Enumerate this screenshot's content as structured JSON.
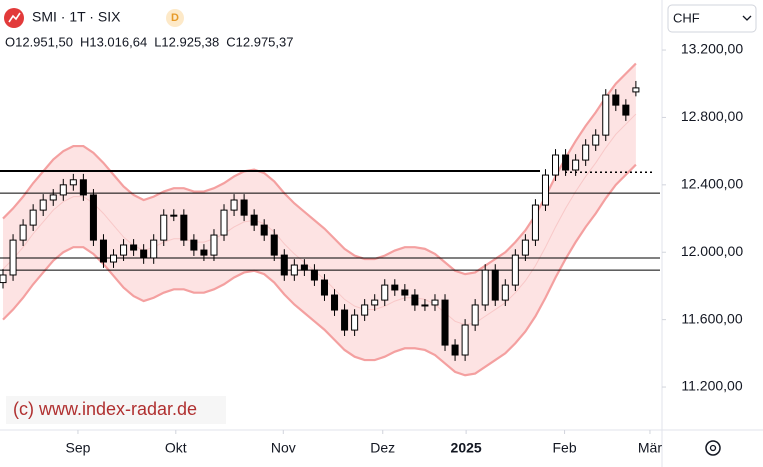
{
  "chart_data": {
    "type": "candlestick",
    "title": "SMI · 1T · SIX",
    "badge": "D",
    "currency": "CHF",
    "ohlc_labels": [
      "O12.951,50",
      "H13.016,64",
      "L12.925,38",
      "C12.975,37"
    ],
    "watermark": "(c) www.index-radar.de",
    "x": [
      0,
      1,
      2,
      3,
      4,
      5,
      6,
      7,
      8,
      9,
      10,
      11,
      12,
      13,
      14,
      15,
      16,
      17,
      18,
      19,
      20,
      21,
      22,
      23,
      24,
      25,
      26,
      27,
      28,
      29,
      30,
      31,
      32,
      33,
      34,
      35,
      36,
      37,
      38,
      39,
      40,
      41,
      42,
      43,
      44,
      45,
      46,
      47,
      48,
      49,
      50,
      51,
      52,
      53,
      54,
      55,
      56,
      57,
      58,
      59,
      60,
      61,
      62,
      63
    ],
    "open": [
      11820,
      11865,
      12072,
      12161,
      12250,
      12310,
      12340,
      12400,
      12430,
      12340,
      12072,
      11942,
      11983,
      12043,
      12013,
      11966,
      12072,
      12220,
      12220,
      12072,
      12013,
      11983,
      12102,
      12250,
      12310,
      12220,
      12161,
      12102,
      11983,
      11865,
      11924,
      11894,
      11835,
      11746,
      11657,
      11538,
      11627,
      11687,
      11716,
      11805,
      11776,
      11746,
      11687,
      11687,
      11716,
      11449,
      11390,
      11568,
      11687,
      11894,
      11716,
      11805,
      11983,
      12072,
      12280,
      12458,
      12577,
      12488,
      12547,
      12636,
      12695,
      12933,
      12873,
      12951.5
    ],
    "high": [
      11900,
      12107,
      12196,
      12285,
      12345,
      12375,
      12435,
      12465,
      12465,
      12375,
      12107,
      12018,
      12078,
      12078,
      12048,
      12107,
      12255,
      12255,
      12255,
      12107,
      12048,
      12137,
      12285,
      12345,
      12345,
      12255,
      12196,
      12137,
      12018,
      11959,
      11959,
      11929,
      11870,
      11781,
      11692,
      11662,
      11722,
      11751,
      11840,
      11840,
      11811,
      11781,
      11722,
      11751,
      11751,
      11484,
      11603,
      11722,
      11929,
      11929,
      11840,
      12018,
      12107,
      12315,
      12493,
      12612,
      12612,
      12582,
      12671,
      12730,
      12968,
      12968,
      12908,
      13016.64
    ],
    "low": [
      11785,
      11830,
      12037,
      12126,
      12215,
      12275,
      12305,
      12365,
      12305,
      12037,
      11907,
      11907,
      11948,
      11978,
      11931,
      11931,
      12037,
      12185,
      12037,
      11978,
      11948,
      11948,
      12067,
      12215,
      12185,
      12126,
      12067,
      11948,
      11830,
      11830,
      11859,
      11800,
      11711,
      11622,
      11503,
      11503,
      11592,
      11652,
      11681,
      11741,
      11711,
      11652,
      11652,
      11652,
      11414,
      11355,
      11355,
      11533,
      11652,
      11681,
      11681,
      11770,
      11948,
      12037,
      12245,
      12423,
      12453,
      12453,
      12512,
      12601,
      12660,
      12838,
      12779,
      12925.38
    ],
    "close": [
      11865,
      12072,
      12161,
      12250,
      12310,
      12340,
      12400,
      12430,
      12340,
      12072,
      11942,
      11983,
      12043,
      12013,
      11966,
      12072,
      12220,
      12220,
      12072,
      12013,
      11983,
      12102,
      12250,
      12310,
      12220,
      12161,
      12102,
      11983,
      11865,
      11924,
      11894,
      11835,
      11746,
      11657,
      11538,
      11627,
      11687,
      11716,
      11805,
      11776,
      11746,
      11687,
      11687,
      11716,
      11449,
      11390,
      11568,
      11687,
      11894,
      11716,
      11805,
      11983,
      12072,
      12280,
      12458,
      12577,
      12488,
      12547,
      12636,
      12695,
      12933,
      12873,
      12814,
      12975.37
    ],
    "bands": {
      "upper": [
        12200,
        12260,
        12330,
        12410,
        12480,
        12550,
        12600,
        12630,
        12630,
        12590,
        12530,
        12460,
        12390,
        12340,
        12310,
        12330,
        12360,
        12380,
        12380,
        12360,
        12360,
        12380,
        12410,
        12450,
        12480,
        12490,
        12470,
        12420,
        12350,
        12290,
        12240,
        12190,
        12140,
        12080,
        12020,
        11980,
        11960,
        11960,
        11980,
        12010,
        12030,
        12030,
        12020,
        11990,
        11940,
        11890,
        11870,
        11880,
        11920,
        11960,
        12000,
        12060,
        12130,
        12220,
        12330,
        12450,
        12560,
        12660,
        12750,
        12830,
        12920,
        13000,
        13060,
        13120
      ],
      "middle": [
        11900,
        11960,
        12030,
        12110,
        12180,
        12250,
        12300,
        12330,
        12330,
        12290,
        12230,
        12160,
        12090,
        12040,
        12010,
        12030,
        12060,
        12080,
        12080,
        12060,
        12060,
        12080,
        12110,
        12150,
        12180,
        12190,
        12170,
        12120,
        12050,
        11990,
        11940,
        11890,
        11840,
        11780,
        11720,
        11680,
        11660,
        11660,
        11680,
        11710,
        11730,
        11730,
        11720,
        11690,
        11640,
        11590,
        11570,
        11580,
        11620,
        11660,
        11700,
        11760,
        11830,
        11920,
        12030,
        12150,
        12260,
        12360,
        12450,
        12530,
        12620,
        12700,
        12760,
        12820
      ],
      "lower": [
        11600,
        11660,
        11730,
        11810,
        11880,
        11950,
        12000,
        12030,
        12030,
        11990,
        11930,
        11860,
        11790,
        11740,
        11710,
        11730,
        11760,
        11780,
        11780,
        11760,
        11760,
        11780,
        11810,
        11850,
        11880,
        11890,
        11870,
        11820,
        11750,
        11690,
        11640,
        11590,
        11540,
        11480,
        11420,
        11380,
        11360,
        11360,
        11380,
        11410,
        11430,
        11430,
        11420,
        11390,
        11340,
        11290,
        11270,
        11280,
        11320,
        11360,
        11400,
        11460,
        11530,
        11620,
        11730,
        11850,
        11960,
        12060,
        12150,
        12230,
        12320,
        12400,
        12460,
        12520
      ],
      "line_color": "#f4a0a0",
      "middle_color": "#f8c8c8",
      "fill": "#fde3e3"
    },
    "hlines": [
      {
        "value": 12482,
        "style": "bold"
      },
      {
        "value": 12351,
        "style": "solid"
      },
      {
        "value": 11966,
        "style": "solid"
      },
      {
        "value": 11894,
        "style": "solid"
      },
      {
        "value": 12475,
        "style": "dotted"
      }
    ],
    "up_color": "#ffffff",
    "down_color": "#000000",
    "xlim": [
      -0.3,
      65.4
    ],
    "xticks": [
      {
        "value": 7.46,
        "label": "Sep"
      },
      {
        "value": 17.2,
        "label": "Okt"
      },
      {
        "value": 27.9,
        "label": "Nov"
      },
      {
        "value": 37.8,
        "label": "Dez"
      },
      {
        "value": 46.1,
        "label": "2025"
      },
      {
        "value": 55.9,
        "label": "Feb"
      },
      {
        "value": 64.4,
        "label": "Mär"
      }
    ],
    "ylim": [
      10945,
      13497
    ],
    "yticks": [
      {
        "value": 11200,
        "label": "11.200,00"
      },
      {
        "value": 11600,
        "label": "11.600,00"
      },
      {
        "value": 12000,
        "label": "12.000,00"
      },
      {
        "value": 12400,
        "label": "12.400,00"
      },
      {
        "value": 12800,
        "label": "12.800,00"
      },
      {
        "value": 13200,
        "label": "13.200,00"
      }
    ]
  }
}
